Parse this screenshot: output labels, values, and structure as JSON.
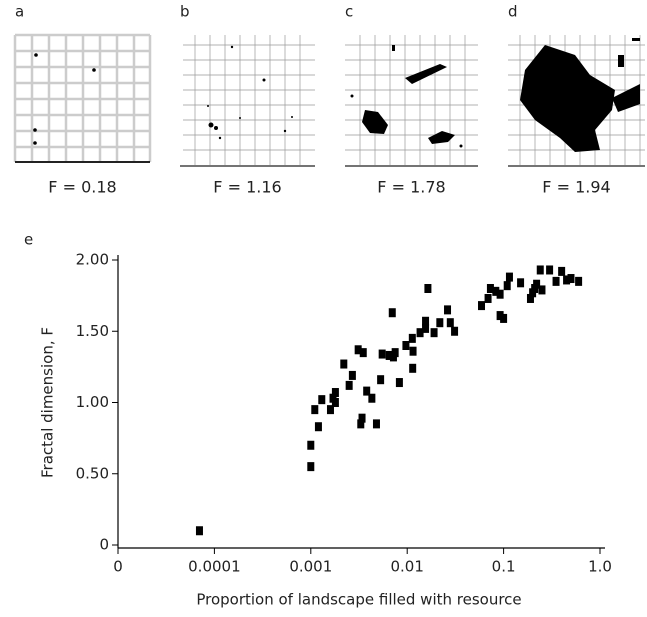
{
  "panels": [
    {
      "letter": "a",
      "caption": "F = 0.18"
    },
    {
      "letter": "b",
      "caption": "F = 1.16"
    },
    {
      "letter": "c",
      "caption": "F = 1.78"
    },
    {
      "letter": "d",
      "caption": "F = 1.94"
    }
  ],
  "chart_data": {
    "type": "scatter",
    "panel_label": "e",
    "xlabel": "Proportion of landscape filled with resource",
    "ylabel": "Fractal dimension, F",
    "xscale": "log",
    "color": "#000000",
    "xlim": [
      1e-05,
      1
    ],
    "xticks": [
      0,
      0.0001,
      0.001,
      0.01,
      0.1,
      {
        "value": 1,
        "label": "1.0"
      }
    ],
    "ylim": [
      0,
      2
    ],
    "yticks": [
      0,
      {
        "value": 0.5,
        "label": "0.50"
      },
      {
        "value": 1,
        "label": "1.00"
      },
      {
        "value": 1.5,
        "label": "1.50"
      },
      {
        "value": 2,
        "label": "2.00"
      }
    ],
    "x": [
      7e-05,
      0.001,
      0.001,
      0.0011,
      0.0012,
      0.0013,
      0.0016,
      0.0017,
      0.0018,
      0.0018,
      0.0022,
      0.0025,
      0.0027,
      0.0031,
      0.0035,
      0.0033,
      0.0034,
      0.0038,
      0.0043,
      0.0048,
      0.0053,
      0.0055,
      0.0065,
      0.007,
      0.0072,
      0.0075,
      0.0083,
      0.0097,
      0.0113,
      0.0114,
      0.0115,
      0.0136,
      0.0155,
      0.0164,
      0.0155,
      0.019,
      0.0218,
      0.0262,
      0.028,
      0.031,
      0.059,
      0.069,
      0.073,
      0.083,
      0.092,
      0.092,
      0.1,
      0.115,
      0.109,
      0.15,
      0.2,
      0.19,
      0.21,
      0.22,
      0.24,
      0.25,
      0.3,
      0.35,
      0.4,
      0.45,
      0.5,
      0.6
    ],
    "y": [
      0.1,
      0.55,
      0.7,
      0.95,
      0.83,
      1.02,
      0.95,
      1.03,
      1.07,
      1.0,
      1.27,
      1.12,
      1.19,
      1.37,
      1.35,
      0.85,
      0.89,
      1.08,
      1.03,
      0.85,
      1.16,
      1.34,
      1.33,
      1.63,
      1.32,
      1.35,
      1.14,
      1.4,
      1.45,
      1.24,
      1.36,
      1.49,
      1.52,
      1.8,
      1.57,
      1.49,
      1.56,
      1.65,
      1.56,
      1.5,
      1.68,
      1.73,
      1.8,
      1.78,
      1.76,
      1.61,
      1.59,
      1.88,
      1.82,
      1.84,
      1.77,
      1.73,
      1.8,
      1.83,
      1.93,
      1.79,
      1.93,
      1.85,
      1.92,
      1.86,
      1.87,
      1.85
    ]
  }
}
